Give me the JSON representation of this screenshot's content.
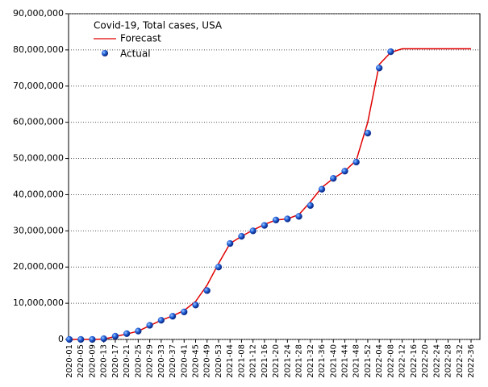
{
  "chart_data": {
    "type": "line",
    "title": "Covid-19, Total cases, USA",
    "categories": [
      "2020-01",
      "2020-05",
      "2020-09",
      "2020-13",
      "2020-17",
      "2020-21",
      "2020-25",
      "2020-29",
      "2020-33",
      "2020-37",
      "2020-41",
      "2020-45",
      "2020-49",
      "2020-53",
      "2021-04",
      "2021-08",
      "2021-12",
      "2021-16",
      "2021-20",
      "2021-24",
      "2021-28",
      "2021-32",
      "2021-36",
      "2021-40",
      "2021-44",
      "2021-48",
      "2021-52",
      "2022-04",
      "2022-08",
      "2022-12",
      "2022-16",
      "2022-20",
      "2022-24",
      "2022-28",
      "2022-32",
      "2022-36"
    ],
    "series": [
      {
        "name": "Forecast",
        "color": "#e00000",
        "style": "line",
        "values": [
          0,
          0,
          0,
          100000,
          800000,
          1500000,
          2300000,
          3800000,
          5300000,
          6500000,
          8000000,
          10500000,
          15000000,
          21000000,
          26500000,
          28500000,
          30200000,
          31800000,
          33000000,
          33300000,
          34500000,
          38000000,
          42000000,
          44500000,
          46500000,
          49500000,
          60000000,
          76000000,
          79300000,
          80300000,
          80300000,
          80300000,
          80300000,
          80300000,
          80300000,
          80300000
        ]
      },
      {
        "name": "Actual",
        "color": "#1a4fd0",
        "style": "dots",
        "values": [
          0,
          0,
          0,
          200000,
          900000,
          1600000,
          2300000,
          3900000,
          5300000,
          6400000,
          7600000,
          9500000,
          13500000,
          20000000,
          26500000,
          28500000,
          30000000,
          31500000,
          33000000,
          33300000,
          34000000,
          37000000,
          41500000,
          44500000,
          46500000,
          49000000,
          57000000,
          75000000,
          79500000,
          null,
          null,
          null,
          null,
          null,
          null,
          null
        ]
      }
    ],
    "ylim": [
      0,
      90000000
    ],
    "yticks": [
      0,
      {
        "value": 10000000,
        "label": "10,000,000"
      },
      {
        "value": 20000000,
        "label": "20,000,000"
      },
      {
        "value": 30000000,
        "label": "30,000,000"
      },
      {
        "value": 40000000,
        "label": "40,000,000"
      },
      {
        "value": 50000000,
        "label": "50,000,000"
      },
      {
        "value": 60000000,
        "label": "60,000,000"
      },
      {
        "value": 70000000,
        "label": "70,000,000"
      },
      {
        "value": 80000000,
        "label": "80,000,000"
      },
      {
        "value": 90000000,
        "label": "90,000,000"
      }
    ],
    "grid": true
  }
}
